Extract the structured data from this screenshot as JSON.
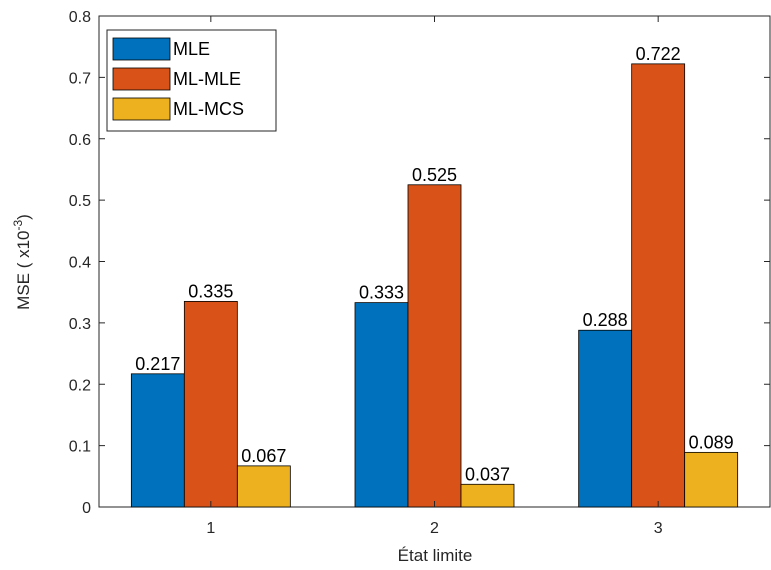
{
  "chart_data": {
    "type": "bar",
    "categories": [
      "1",
      "2",
      "3"
    ],
    "series": [
      {
        "name": "MLE",
        "color": "#0072BD",
        "values": [
          0.217,
          0.333,
          0.288
        ],
        "labels": [
          "0.217",
          "0.333",
          "0.288"
        ]
      },
      {
        "name": "ML-MLE",
        "color": "#D95319",
        "values": [
          0.335,
          0.525,
          0.722
        ],
        "labels": [
          "0.335",
          "0.525",
          "0.722"
        ]
      },
      {
        "name": "ML-MCS",
        "color": "#EDB120",
        "values": [
          0.067,
          0.037,
          0.089
        ],
        "labels": [
          "0.067",
          "0.037",
          "0.089"
        ]
      }
    ],
    "xlabel": "État limite",
    "ylabel": {
      "prefix": "MSE ( x10",
      "exponent": "-3",
      "suffix": ")"
    },
    "ylim": [
      0,
      0.8
    ],
    "yticks": [
      0,
      0.1,
      0.2,
      0.3,
      0.4,
      0.5,
      0.6,
      0.7,
      0.8
    ],
    "ytick_labels": [
      "0",
      "0.1",
      "0.2",
      "0.3",
      "0.4",
      "0.5",
      "0.6",
      "0.7",
      "0.8"
    ],
    "grid": false,
    "legend_position": "top-left"
  }
}
